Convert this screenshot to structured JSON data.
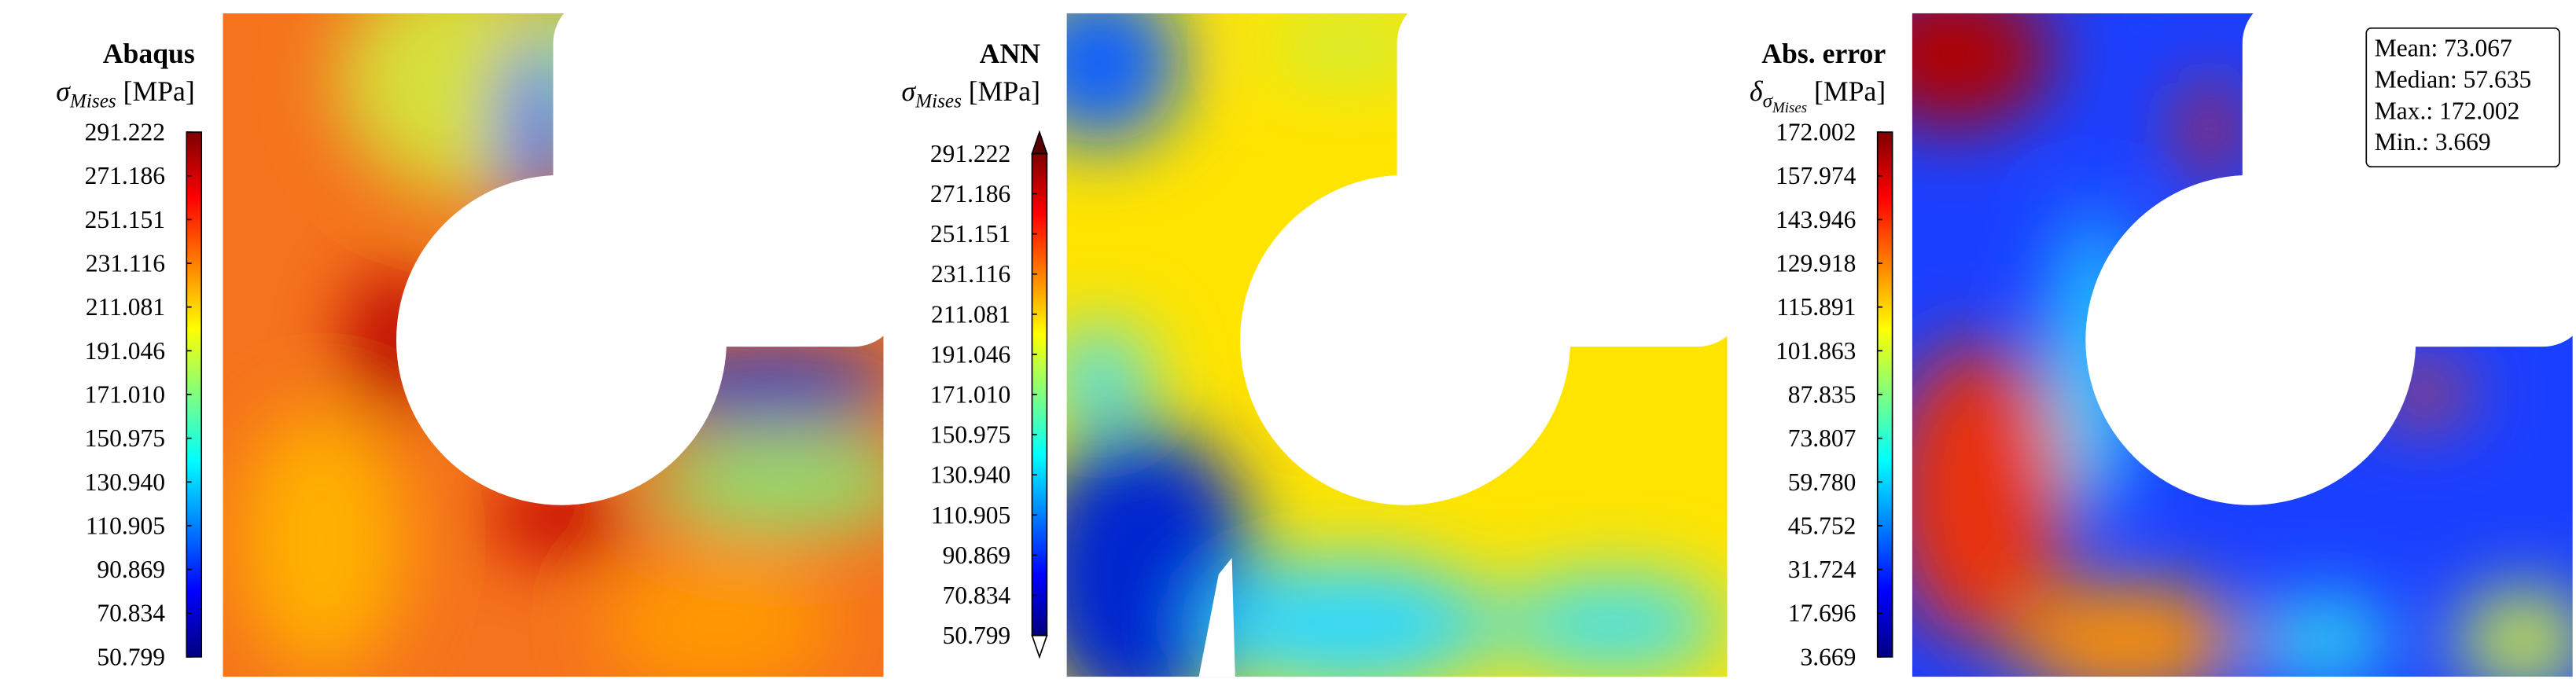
{
  "chart_data": [
    {
      "type": "contour",
      "title": "Abaqus",
      "label_symbol": "σ",
      "label_subscript": "Mises",
      "label_unit": "[MPa]",
      "colormap": "jet",
      "extend": "neither",
      "clim": [
        50.799,
        291.222
      ],
      "cticks": [
        50.799,
        70.834,
        90.869,
        110.905,
        {
          "value": 130.94,
          "label": "130.940"
        },
        150.975,
        {
          "value": 171.01,
          "label": "171.010"
        },
        191.046,
        211.081,
        231.116,
        251.151,
        271.186,
        291.222
      ]
    },
    {
      "type": "contour",
      "title": "ANN",
      "label_symbol": "σ",
      "label_subscript": "Mises",
      "label_unit": "[MPa]",
      "colormap": "jet",
      "extend": "both",
      "clim": [
        50.799,
        291.222
      ],
      "cticks": [
        50.799,
        70.834,
        90.869,
        110.905,
        {
          "value": 130.94,
          "label": "130.940"
        },
        150.975,
        {
          "value": 171.01,
          "label": "171.010"
        },
        191.046,
        211.081,
        231.116,
        251.151,
        271.186,
        291.222
      ]
    },
    {
      "type": "contour",
      "title": "Abs. error",
      "label_symbol": "δ",
      "label_subscript": "σ",
      "label_subsubscript": "Mises",
      "label_unit": "[MPa]",
      "colormap": "jet",
      "extend": "neither",
      "clim": [
        3.669,
        172.002
      ],
      "cticks": [
        3.669,
        17.696,
        31.724,
        45.752,
        {
          "value": 59.78,
          "label": "59.780"
        },
        73.807,
        87.835,
        101.863,
        115.891,
        129.918,
        143.946,
        157.974,
        172.002
      ],
      "stats": [
        {
          "label": "Mean:",
          "value": 73.067
        },
        {
          "label": "Median:",
          "value": 57.635
        },
        {
          "label": "Max.:",
          "value": 172.002
        },
        {
          "label": "Min.:",
          "value": 3.669
        }
      ]
    }
  ]
}
